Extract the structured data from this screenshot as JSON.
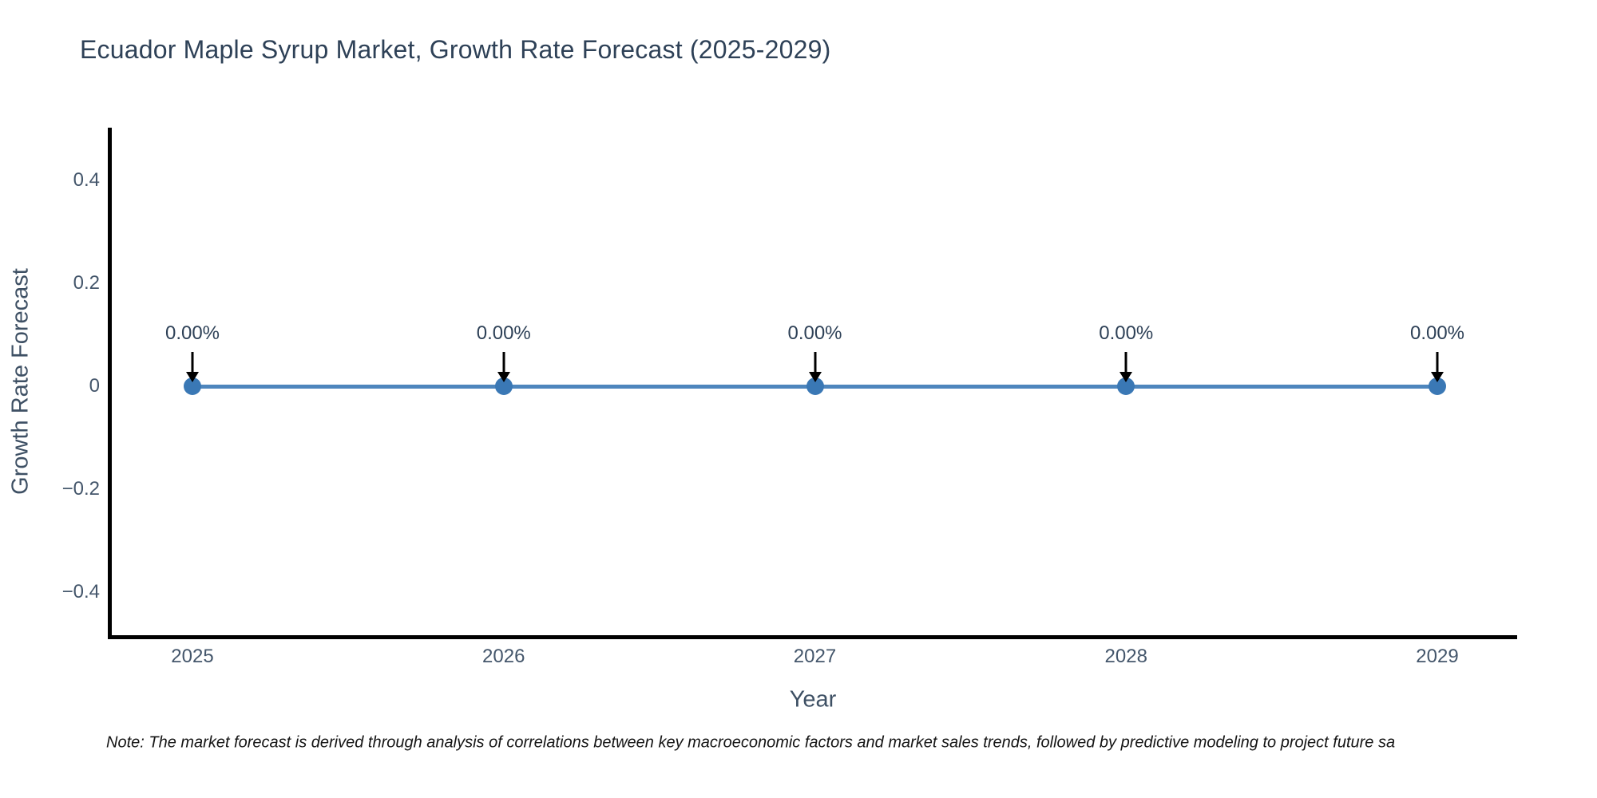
{
  "title": "Ecuador Maple Syrup Market, Growth Rate Forecast (2025-2029)",
  "note": "Note: The market forecast is derived through analysis of correlations between key macroeconomic factors and market sales trends, followed by predictive modeling to project future sa",
  "colors": {
    "line": "#4e86bd",
    "marker": "#3a78b5",
    "title_text": "#2e4157",
    "tick_text": "#44566b",
    "axis_label_text": "#3e5064",
    "annotation_text": "#2e4157",
    "arrow": "#000000",
    "spine": "#000000",
    "note_text": "#151515",
    "background": "#ffffff"
  },
  "chart_data": {
    "type": "line",
    "title": "Ecuador Maple Syrup Market, Growth Rate Forecast (2025-2029)",
    "xlabel": "Year",
    "ylabel": "Growth Rate Forecast",
    "x": [
      2025,
      2026,
      2027,
      2028,
      2029
    ],
    "categories": [
      "2025",
      "2026",
      "2027",
      "2028",
      "2029"
    ],
    "series": [
      {
        "name": "Growth Rate Forecast",
        "values": [
          0,
          0,
          0,
          0,
          0
        ]
      }
    ],
    "point_annotations": [
      "0.00%",
      "0.00%",
      "0.00%",
      "0.00%",
      "0.00%"
    ],
    "yticks": [
      0.4,
      0.2,
      0,
      -0.2,
      -0.4
    ],
    "ytick_labels": [
      "0.4",
      "0.2",
      "0",
      "−0.2",
      "−0.4"
    ],
    "ylim": [
      -0.49,
      0.5
    ],
    "xlim": [
      2024.74,
      2029.26
    ],
    "grid": false,
    "legend_position": "none",
    "marker_style": "circle",
    "annotation_arrows": "down"
  }
}
